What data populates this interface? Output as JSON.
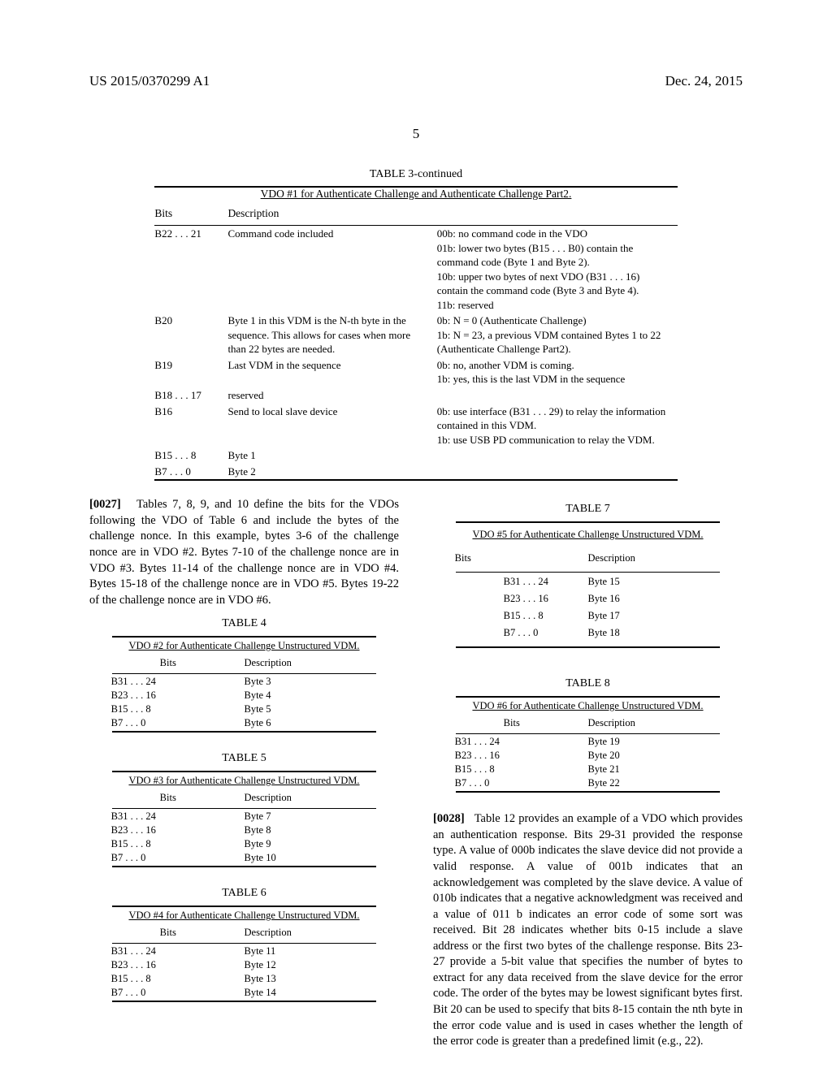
{
  "header": {
    "left": "US 2015/0370299 A1",
    "right": "Dec. 24, 2015"
  },
  "pageNumber": "5",
  "table3": {
    "caption": "TABLE 3-continued",
    "title": "VDO #1 for Authenticate Challenge and Authenticate Challenge Part2.",
    "headers": [
      "Bits",
      "Description",
      ""
    ],
    "rows": [
      {
        "bits": "B22 . . . 21",
        "desc": "Command code included",
        "extra": "00b: no command code in the VDO\n01b: lower two bytes (B15 . . . B0) contain the command code (Byte 1 and Byte 2).\n10b: upper two bytes of next VDO (B31 . . . 16) contain the command code (Byte 3 and Byte 4).\n11b: reserved"
      },
      {
        "bits": "B20",
        "desc": "Byte 1 in this VDM is the N-th byte in the sequence. This allows for cases when more than 22 bytes are needed.",
        "extra": "0b: N = 0 (Authenticate Challenge)\n1b: N = 23, a previous VDM contained Bytes 1 to 22 (Authenticate Challenge Part2)."
      },
      {
        "bits": "B19",
        "desc": "Last VDM in the sequence",
        "extra": "0b: no, another VDM is coming.\n1b: yes, this is the last VDM in the sequence"
      },
      {
        "bits": "B18 . . . 17",
        "desc": "reserved",
        "extra": ""
      },
      {
        "bits": "B16",
        "desc": "Send to local slave device",
        "extra": "0b: use interface (B31 . . . 29) to relay the information contained in this VDM.\n1b: use USB PD communication to relay the VDM."
      },
      {
        "bits": "B15 . . . 8",
        "desc": "Byte 1",
        "extra": ""
      },
      {
        "bits": "B7 . . . 0",
        "desc": "Byte 2",
        "extra": ""
      }
    ]
  },
  "para27": {
    "num": "[0027]",
    "text": "Tables 7, 8, 9, and 10 define the bits for the VDOs following the VDO of Table 6 and include the bytes of the challenge nonce. In this example, bytes 3-6 of the challenge nonce are in VDO #2. Bytes 7-10 of the challenge nonce are in VDO #3. Bytes 11-14 of the challenge nonce are in VDO #4. Bytes 15-18 of the challenge nonce are in VDO #5. Bytes 19-22 of the challenge nonce are in VDO #6."
  },
  "table4": {
    "caption": "TABLE 4",
    "title": "VDO #2 for Authenticate Challenge Unstructured VDM.",
    "headers": [
      "Bits",
      "Description"
    ],
    "rows": [
      {
        "bits": "B31 . . . 24",
        "desc": "Byte 3"
      },
      {
        "bits": "B23 . . . 16",
        "desc": "Byte 4"
      },
      {
        "bits": "B15 . . . 8",
        "desc": "Byte 5"
      },
      {
        "bits": "B7 . . . 0",
        "desc": "Byte 6"
      }
    ]
  },
  "table5": {
    "caption": "TABLE 5",
    "title": "VDO #3 for Authenticate Challenge Unstructured VDM.",
    "headers": [
      "Bits",
      "Description"
    ],
    "rows": [
      {
        "bits": "B31 . . . 24",
        "desc": "Byte 7"
      },
      {
        "bits": "B23 . . . 16",
        "desc": "Byte 8"
      },
      {
        "bits": "B15 . . . 8",
        "desc": "Byte 9"
      },
      {
        "bits": "B7 . . . 0",
        "desc": "Byte 10"
      }
    ]
  },
  "table6": {
    "caption": "TABLE 6",
    "title": "VDO #4 for Authenticate Challenge Unstructured VDM.",
    "headers": [
      "Bits",
      "Description"
    ],
    "rows": [
      {
        "bits": "B31 . . . 24",
        "desc": "Byte 11"
      },
      {
        "bits": "B23 . . . 16",
        "desc": "Byte 12"
      },
      {
        "bits": "B15 . . . 8",
        "desc": "Byte 13"
      },
      {
        "bits": "B7 . . . 0",
        "desc": "Byte 14"
      }
    ]
  },
  "table7": {
    "caption": "TABLE 7",
    "title": "VDO #5 for Authenticate Challenge Unstructured VDM.",
    "headers": [
      "Bits",
      "Description"
    ],
    "rows": [
      {
        "bits": "B31 . . . 24",
        "desc": "Byte 15"
      },
      {
        "bits": "B23 . . . 16",
        "desc": "Byte 16"
      },
      {
        "bits": "B15 . . . 8",
        "desc": "Byte 17"
      },
      {
        "bits": "B7 . . . 0",
        "desc": "Byte 18"
      }
    ]
  },
  "table8": {
    "caption": "TABLE 8",
    "title": "VDO #6 for Authenticate Challenge Unstructured VDM.",
    "headers": [
      "Bits",
      "Description"
    ],
    "rows": [
      {
        "bits": "B31 . . . 24",
        "desc": "Byte 19"
      },
      {
        "bits": "B23 . . . 16",
        "desc": "Byte 20"
      },
      {
        "bits": "B15 . . . 8",
        "desc": "Byte 21"
      },
      {
        "bits": "B7 . . . 0",
        "desc": "Byte 22"
      }
    ]
  },
  "para28": {
    "num": "[0028]",
    "text": "Table 12 provides an example of a VDO which provides an authentication response. Bits 29-31 provided the response type. A value of 000b indicates the slave device did not provide a valid response. A value of 001b indicates that an acknowledgement was completed by the slave device. A value of 010b indicates that a negative acknowledgment was received and a value of 011 b indicates an error code of some sort was received. Bit 28 indicates whether bits 0-15 include a slave address or the first two bytes of the challenge response. Bits 23-27 provide a 5-bit value that specifies the number of bytes to extract for any data received from the slave device for the error code. The order of the bytes may be lowest significant bytes first. Bit 20 can be used to specify that bits 8-15 contain the nth byte in the error code value and is used in cases whether the length of the error code is greater than a predefined limit (e.g., 22)."
  }
}
